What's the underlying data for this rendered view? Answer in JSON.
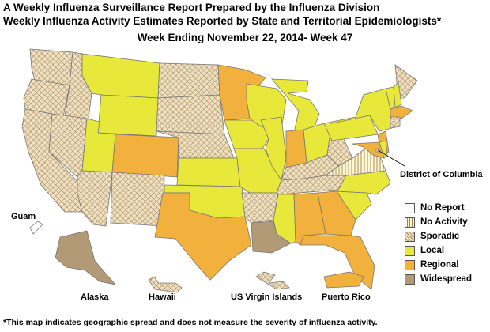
{
  "header": {
    "line1": "A Weekly Influenza Surveillance Report Prepared by the Influenza Division",
    "line2": "Weekly Influenza Activity Estimates Reported by State and Territorial Epidemiologists*",
    "week": "Week Ending November 22, 2014- Week 47"
  },
  "legend": {
    "items": [
      {
        "label": "No Report",
        "color": "#ffffff",
        "pattern": "none"
      },
      {
        "label": "No Activity",
        "color": "#fff8d0",
        "pattern": "stripes"
      },
      {
        "label": "Sporadic",
        "color": "#e9d7b3",
        "pattern": "crosshatch"
      },
      {
        "label": "Local",
        "color": "#e8e83a",
        "pattern": "none"
      },
      {
        "label": "Regional",
        "color": "#f2b13d",
        "pattern": "none"
      },
      {
        "label": "Widespread",
        "color": "#b39a76",
        "pattern": "none"
      }
    ]
  },
  "labels": {
    "dc": "District of Columbia",
    "guam": "Guam",
    "alaska": "Alaska",
    "hawaii": "Hawaii",
    "usvi": "US Virgin Islands",
    "pr": "Puerto Rico"
  },
  "activity": {
    "Washington": "Sporadic",
    "Oregon": "Sporadic",
    "California": "Sporadic",
    "Idaho": "Sporadic",
    "Nevada": "Sporadic",
    "Montana": "Local",
    "Wyoming": "Local",
    "Utah": "Local",
    "Arizona": "Sporadic",
    "Colorado": "Regional",
    "New Mexico": "Sporadic",
    "North Dakota": "Sporadic",
    "South Dakota": "Sporadic",
    "Nebraska": "Sporadic",
    "Kansas": "Local",
    "Oklahoma": "Local",
    "Texas": "Regional",
    "Minnesota": "Regional",
    "Iowa": "Local",
    "Missouri": "Local",
    "Arkansas": "Sporadic",
    "Louisiana": "Widespread",
    "Wisconsin": "Local",
    "Illinois": "Local",
    "Michigan": "Local",
    "Indiana": "Regional",
    "Ohio": "Local",
    "Kentucky": "Sporadic",
    "Tennessee": "Sporadic",
    "Mississippi": "Local",
    "Alabama": "Regional",
    "Georgia": "Regional",
    "Florida": "Regional",
    "South Carolina": "Local",
    "North Carolina": "Local",
    "Virginia": "No Activity",
    "West Virginia": "Sporadic",
    "Pennsylvania": "Local",
    "New York": "Local",
    "Maine": "Sporadic",
    "Vermont": "Local",
    "New Hampshire": "Local",
    "Massachusetts": "Regional",
    "Connecticut": "Sporadic",
    "New Jersey": "Regional",
    "Maryland": "Regional",
    "Delaware": "Local",
    "District of Columbia": "Sporadic",
    "Alaska": "Widespread",
    "Hawaii": "Sporadic",
    "Guam": "No Report",
    "US Virgin Islands": "Sporadic",
    "Puerto Rico": "Regional"
  },
  "footnote": "*This map indicates geographic spread and does not measure the severity of influenza activity."
}
